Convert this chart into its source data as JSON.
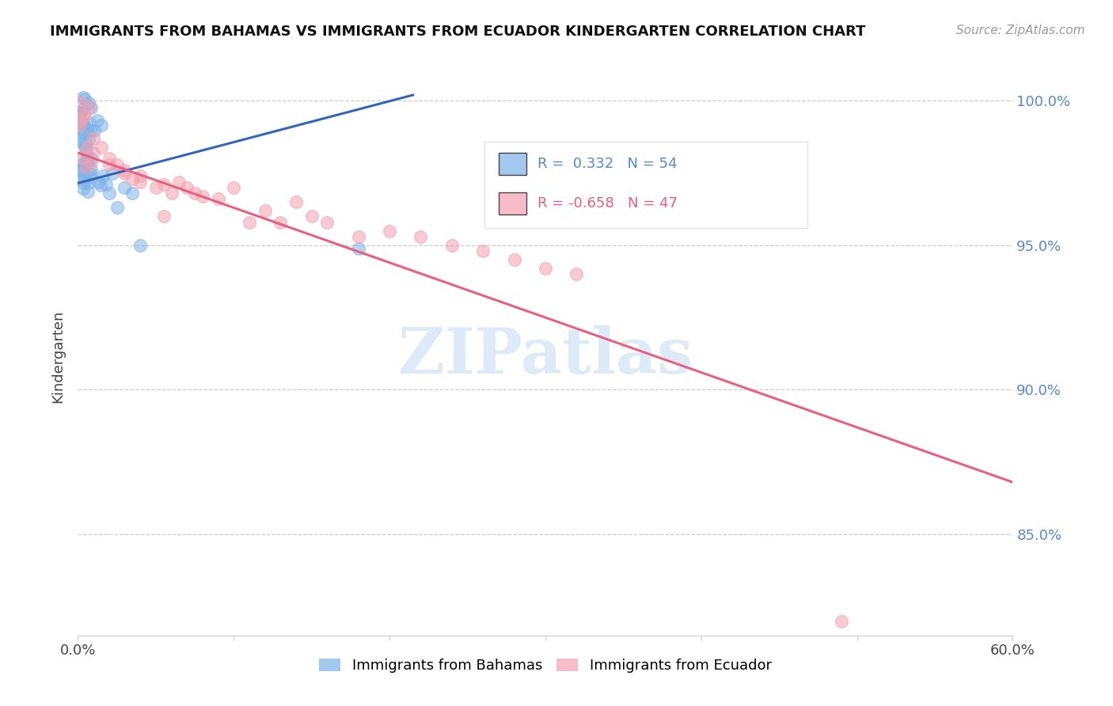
{
  "title": "IMMIGRANTS FROM BAHAMAS VS IMMIGRANTS FROM ECUADOR KINDERGARTEN CORRELATION CHART",
  "source": "Source: ZipAtlas.com",
  "ylabel": "Kindergarten",
  "xlim": [
    0.0,
    0.6
  ],
  "ylim": [
    0.815,
    1.008
  ],
  "ytick_positions": [
    0.85,
    0.9,
    0.95,
    1.0
  ],
  "ytick_labels": [
    "85.0%",
    "90.0%",
    "95.0%",
    "100.0%"
  ],
  "blue_R": 0.332,
  "blue_N": 54,
  "pink_R": -0.658,
  "pink_N": 47,
  "blue_color": "#7EB3E8",
  "pink_color": "#F4A0B0",
  "blue_line_color": "#3366BB",
  "pink_line_color": "#E86080",
  "legend_label_blue": "Immigrants from Bahamas",
  "legend_label_pink": "Immigrants from Ecuador",
  "blue_trendline_x": [
    0.0,
    0.215
  ],
  "blue_trendline_y": [
    0.9715,
    1.002
  ],
  "pink_trendline_x": [
    0.0,
    0.6
  ],
  "pink_trendline_y": [
    0.982,
    0.868
  ]
}
